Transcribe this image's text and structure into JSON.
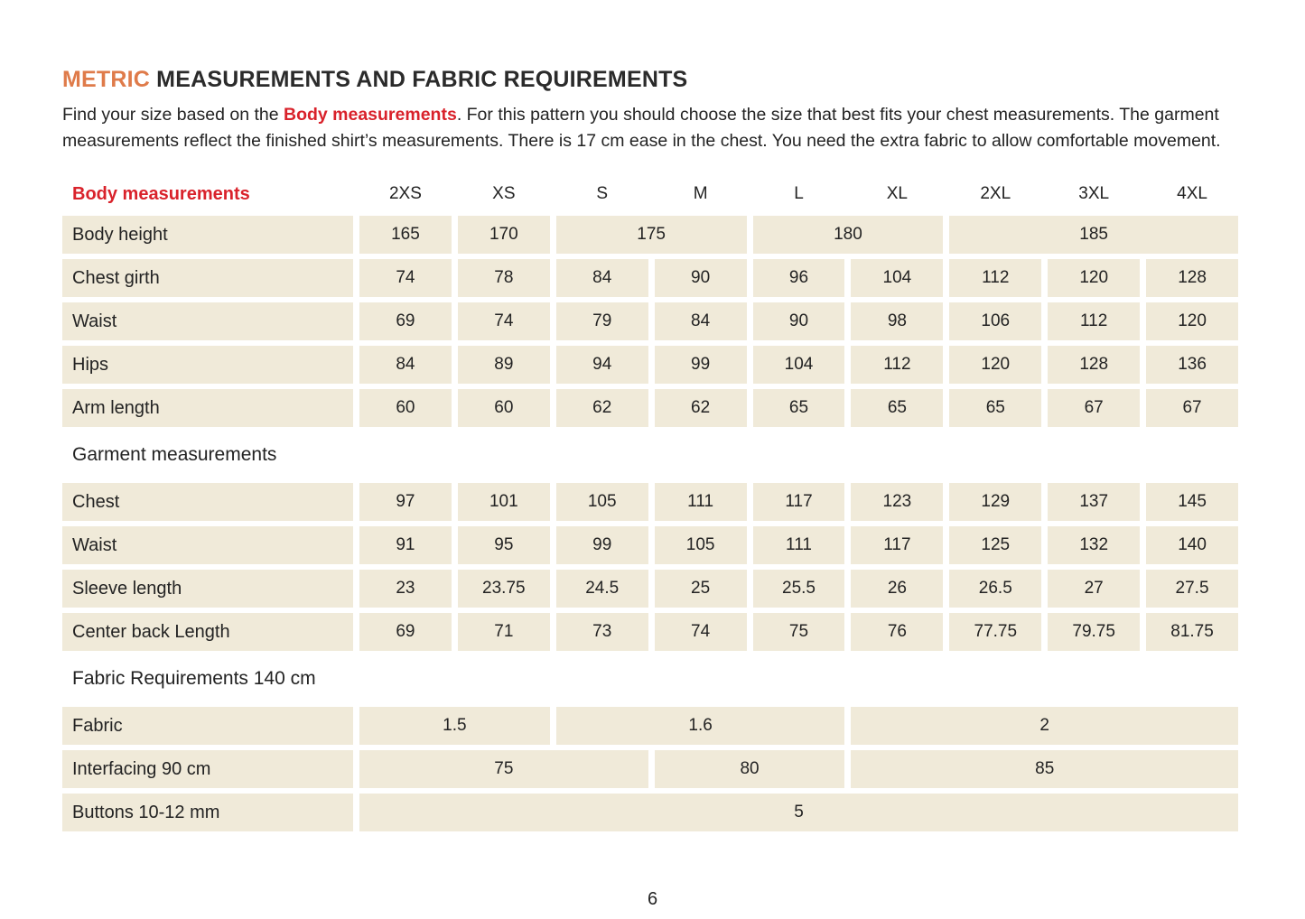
{
  "header": {
    "title_highlight": "METRIC",
    "title_rest": " MEASUREMENTS AND FABRIC REQUIREMENTS"
  },
  "intro": {
    "before": "Find your size based on the ",
    "bold": "Body measurements",
    "after": ". For this pattern you should choose the size that best fits your chest measurements. The garment measurements reflect the finished shirt’s measurements. There is 17 cm ease in the chest. You need the extra fabric to allow comfortable movement."
  },
  "colors": {
    "accent_orange": "#DF7B4A",
    "accent_red": "#D9222B",
    "cell_beige": "#F0EAD9",
    "text_dark": "#232323"
  },
  "table": {
    "header_label": "Body measurements",
    "size_headers": [
      "2XS",
      "XS",
      "S",
      "M",
      "L",
      "XL",
      "2XL",
      "3XL",
      "4XL"
    ],
    "sections": [
      {
        "heading": "",
        "rows": [
          {
            "label": "Body height",
            "cells": [
              {
                "value": "165",
                "span": 1
              },
              {
                "value": "170",
                "span": 1
              },
              {
                "value": "175",
                "span": 2
              },
              {
                "value": "180",
                "span": 2
              },
              {
                "value": "185",
                "span": 3
              }
            ]
          },
          {
            "label": "Chest girth",
            "cells": [
              {
                "value": "74",
                "span": 1
              },
              {
                "value": "78",
                "span": 1
              },
              {
                "value": "84",
                "span": 1
              },
              {
                "value": "90",
                "span": 1
              },
              {
                "value": "96",
                "span": 1
              },
              {
                "value": "104",
                "span": 1
              },
              {
                "value": "112",
                "span": 1
              },
              {
                "value": "120",
                "span": 1
              },
              {
                "value": "128",
                "span": 1
              }
            ]
          },
          {
            "label": "Waist",
            "cells": [
              {
                "value": "69",
                "span": 1
              },
              {
                "value": "74",
                "span": 1
              },
              {
                "value": "79",
                "span": 1
              },
              {
                "value": "84",
                "span": 1
              },
              {
                "value": "90",
                "span": 1
              },
              {
                "value": "98",
                "span": 1
              },
              {
                "value": "106",
                "span": 1
              },
              {
                "value": "112",
                "span": 1
              },
              {
                "value": "120",
                "span": 1
              }
            ]
          },
          {
            "label": "Hips",
            "cells": [
              {
                "value": "84",
                "span": 1
              },
              {
                "value": "89",
                "span": 1
              },
              {
                "value": "94",
                "span": 1
              },
              {
                "value": "99",
                "span": 1
              },
              {
                "value": "104",
                "span": 1
              },
              {
                "value": "112",
                "span": 1
              },
              {
                "value": "120",
                "span": 1
              },
              {
                "value": "128",
                "span": 1
              },
              {
                "value": "136",
                "span": 1
              }
            ]
          },
          {
            "label": "Arm length",
            "cells": [
              {
                "value": "60",
                "span": 1
              },
              {
                "value": "60",
                "span": 1
              },
              {
                "value": "62",
                "span": 1
              },
              {
                "value": "62",
                "span": 1
              },
              {
                "value": "65",
                "span": 1
              },
              {
                "value": "65",
                "span": 1
              },
              {
                "value": "65",
                "span": 1
              },
              {
                "value": "67",
                "span": 1
              },
              {
                "value": "67",
                "span": 1
              }
            ]
          }
        ]
      },
      {
        "heading": "Garment measurements",
        "rows": [
          {
            "label": "Chest",
            "cells": [
              {
                "value": "97",
                "span": 1
              },
              {
                "value": "101",
                "span": 1
              },
              {
                "value": "105",
                "span": 1
              },
              {
                "value": "111",
                "span": 1
              },
              {
                "value": "117",
                "span": 1
              },
              {
                "value": "123",
                "span": 1
              },
              {
                "value": "129",
                "span": 1
              },
              {
                "value": "137",
                "span": 1
              },
              {
                "value": "145",
                "span": 1
              }
            ]
          },
          {
            "label": "Waist",
            "cells": [
              {
                "value": "91",
                "span": 1
              },
              {
                "value": "95",
                "span": 1
              },
              {
                "value": "99",
                "span": 1
              },
              {
                "value": "105",
                "span": 1
              },
              {
                "value": "111",
                "span": 1
              },
              {
                "value": "117",
                "span": 1
              },
              {
                "value": "125",
                "span": 1
              },
              {
                "value": "132",
                "span": 1
              },
              {
                "value": "140",
                "span": 1
              }
            ]
          },
          {
            "label": "Sleeve length",
            "cells": [
              {
                "value": "23",
                "span": 1
              },
              {
                "value": "23.75",
                "span": 1
              },
              {
                "value": "24.5",
                "span": 1
              },
              {
                "value": "25",
                "span": 1
              },
              {
                "value": "25.5",
                "span": 1
              },
              {
                "value": "26",
                "span": 1
              },
              {
                "value": "26.5",
                "span": 1
              },
              {
                "value": "27",
                "span": 1
              },
              {
                "value": "27.5",
                "span": 1
              }
            ]
          },
          {
            "label": "Center back Length",
            "cells": [
              {
                "value": "69",
                "span": 1
              },
              {
                "value": "71",
                "span": 1
              },
              {
                "value": "73",
                "span": 1
              },
              {
                "value": "74",
                "span": 1
              },
              {
                "value": "75",
                "span": 1
              },
              {
                "value": "76",
                "span": 1
              },
              {
                "value": "77.75",
                "span": 1
              },
              {
                "value": "79.75",
                "span": 1
              },
              {
                "value": "81.75",
                "span": 1
              }
            ]
          }
        ]
      },
      {
        "heading": "Fabric Requirements 140 cm",
        "rows": [
          {
            "label": "Fabric",
            "cells": [
              {
                "value": "1.5",
                "span": 2
              },
              {
                "value": "1.6",
                "span": 3
              },
              {
                "value": "2",
                "span": 4
              }
            ]
          },
          {
            "label": "Interfacing 90 cm",
            "cells": [
              {
                "value": "75",
                "span": 3
              },
              {
                "value": "80",
                "span": 2
              },
              {
                "value": "85",
                "span": 4
              }
            ]
          },
          {
            "label": "Buttons 10-12 mm",
            "cells": [
              {
                "value": "5",
                "span": 9
              }
            ]
          }
        ]
      }
    ]
  },
  "footer": {
    "page_number": "6"
  }
}
